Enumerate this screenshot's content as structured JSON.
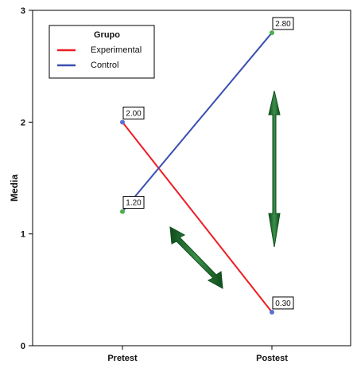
{
  "chart_data": {
    "type": "line",
    "title": "",
    "xlabel": "",
    "ylabel": "Media",
    "categories": [
      "Pretest",
      "Postest"
    ],
    "ylim": [
      0,
      3
    ],
    "yticks": [
      "0",
      "1",
      "2",
      "3"
    ],
    "grid": false,
    "legend": {
      "title": "Grupo",
      "position": "top-left"
    },
    "series": [
      {
        "name": "Experimental",
        "color": "#ee1c24",
        "values": [
          2.0,
          0.3
        ],
        "labels": [
          "2.00",
          "0.30"
        ],
        "marker_color": "#5b6fd6"
      },
      {
        "name": "Control",
        "color": "#3b4fb0",
        "values": [
          1.2,
          2.8
        ],
        "labels": [
          "1.20",
          "2.80"
        ],
        "marker_color": "#4caf50"
      }
    ]
  }
}
